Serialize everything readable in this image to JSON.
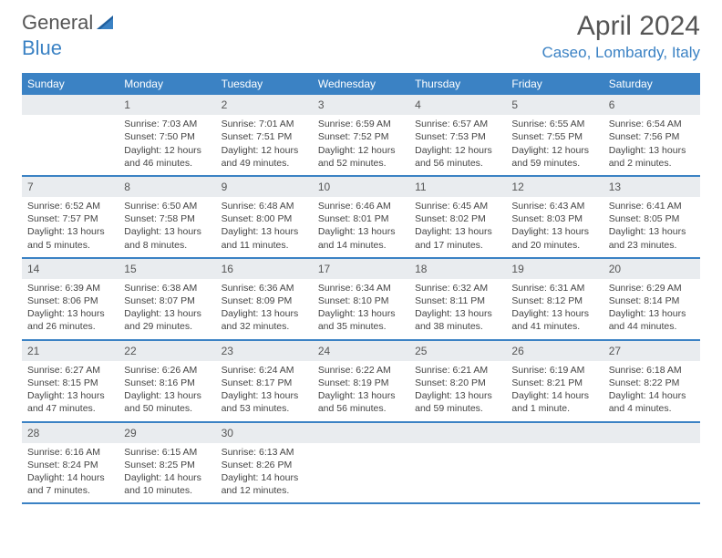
{
  "brand": {
    "part1": "General",
    "part2": "Blue"
  },
  "title": "April 2024",
  "location": "Caseo, Lombardy, Italy",
  "colors": {
    "header_bg": "#3b82c4",
    "header_text": "#ffffff",
    "daynum_bg": "#e9ecef",
    "text": "#444444",
    "title_color": "#555555",
    "location_color": "#3b82c4",
    "border": "#3b82c4"
  },
  "day_names": [
    "Sunday",
    "Monday",
    "Tuesday",
    "Wednesday",
    "Thursday",
    "Friday",
    "Saturday"
  ],
  "weeks": [
    [
      null,
      {
        "n": "1",
        "sr": "7:03 AM",
        "ss": "7:50 PM",
        "dl": "12 hours and 46 minutes."
      },
      {
        "n": "2",
        "sr": "7:01 AM",
        "ss": "7:51 PM",
        "dl": "12 hours and 49 minutes."
      },
      {
        "n": "3",
        "sr": "6:59 AM",
        "ss": "7:52 PM",
        "dl": "12 hours and 52 minutes."
      },
      {
        "n": "4",
        "sr": "6:57 AM",
        "ss": "7:53 PM",
        "dl": "12 hours and 56 minutes."
      },
      {
        "n": "5",
        "sr": "6:55 AM",
        "ss": "7:55 PM",
        "dl": "12 hours and 59 minutes."
      },
      {
        "n": "6",
        "sr": "6:54 AM",
        "ss": "7:56 PM",
        "dl": "13 hours and 2 minutes."
      }
    ],
    [
      {
        "n": "7",
        "sr": "6:52 AM",
        "ss": "7:57 PM",
        "dl": "13 hours and 5 minutes."
      },
      {
        "n": "8",
        "sr": "6:50 AM",
        "ss": "7:58 PM",
        "dl": "13 hours and 8 minutes."
      },
      {
        "n": "9",
        "sr": "6:48 AM",
        "ss": "8:00 PM",
        "dl": "13 hours and 11 minutes."
      },
      {
        "n": "10",
        "sr": "6:46 AM",
        "ss": "8:01 PM",
        "dl": "13 hours and 14 minutes."
      },
      {
        "n": "11",
        "sr": "6:45 AM",
        "ss": "8:02 PM",
        "dl": "13 hours and 17 minutes."
      },
      {
        "n": "12",
        "sr": "6:43 AM",
        "ss": "8:03 PM",
        "dl": "13 hours and 20 minutes."
      },
      {
        "n": "13",
        "sr": "6:41 AM",
        "ss": "8:05 PM",
        "dl": "13 hours and 23 minutes."
      }
    ],
    [
      {
        "n": "14",
        "sr": "6:39 AM",
        "ss": "8:06 PM",
        "dl": "13 hours and 26 minutes."
      },
      {
        "n": "15",
        "sr": "6:38 AM",
        "ss": "8:07 PM",
        "dl": "13 hours and 29 minutes."
      },
      {
        "n": "16",
        "sr": "6:36 AM",
        "ss": "8:09 PM",
        "dl": "13 hours and 32 minutes."
      },
      {
        "n": "17",
        "sr": "6:34 AM",
        "ss": "8:10 PM",
        "dl": "13 hours and 35 minutes."
      },
      {
        "n": "18",
        "sr": "6:32 AM",
        "ss": "8:11 PM",
        "dl": "13 hours and 38 minutes."
      },
      {
        "n": "19",
        "sr": "6:31 AM",
        "ss": "8:12 PM",
        "dl": "13 hours and 41 minutes."
      },
      {
        "n": "20",
        "sr": "6:29 AM",
        "ss": "8:14 PM",
        "dl": "13 hours and 44 minutes."
      }
    ],
    [
      {
        "n": "21",
        "sr": "6:27 AM",
        "ss": "8:15 PM",
        "dl": "13 hours and 47 minutes."
      },
      {
        "n": "22",
        "sr": "6:26 AM",
        "ss": "8:16 PM",
        "dl": "13 hours and 50 minutes."
      },
      {
        "n": "23",
        "sr": "6:24 AM",
        "ss": "8:17 PM",
        "dl": "13 hours and 53 minutes."
      },
      {
        "n": "24",
        "sr": "6:22 AM",
        "ss": "8:19 PM",
        "dl": "13 hours and 56 minutes."
      },
      {
        "n": "25",
        "sr": "6:21 AM",
        "ss": "8:20 PM",
        "dl": "13 hours and 59 minutes."
      },
      {
        "n": "26",
        "sr": "6:19 AM",
        "ss": "8:21 PM",
        "dl": "14 hours and 1 minute."
      },
      {
        "n": "27",
        "sr": "6:18 AM",
        "ss": "8:22 PM",
        "dl": "14 hours and 4 minutes."
      }
    ],
    [
      {
        "n": "28",
        "sr": "6:16 AM",
        "ss": "8:24 PM",
        "dl": "14 hours and 7 minutes."
      },
      {
        "n": "29",
        "sr": "6:15 AM",
        "ss": "8:25 PM",
        "dl": "14 hours and 10 minutes."
      },
      {
        "n": "30",
        "sr": "6:13 AM",
        "ss": "8:26 PM",
        "dl": "14 hours and 12 minutes."
      },
      null,
      null,
      null,
      null
    ]
  ],
  "labels": {
    "sunrise": "Sunrise:",
    "sunset": "Sunset:",
    "daylight": "Daylight:"
  }
}
